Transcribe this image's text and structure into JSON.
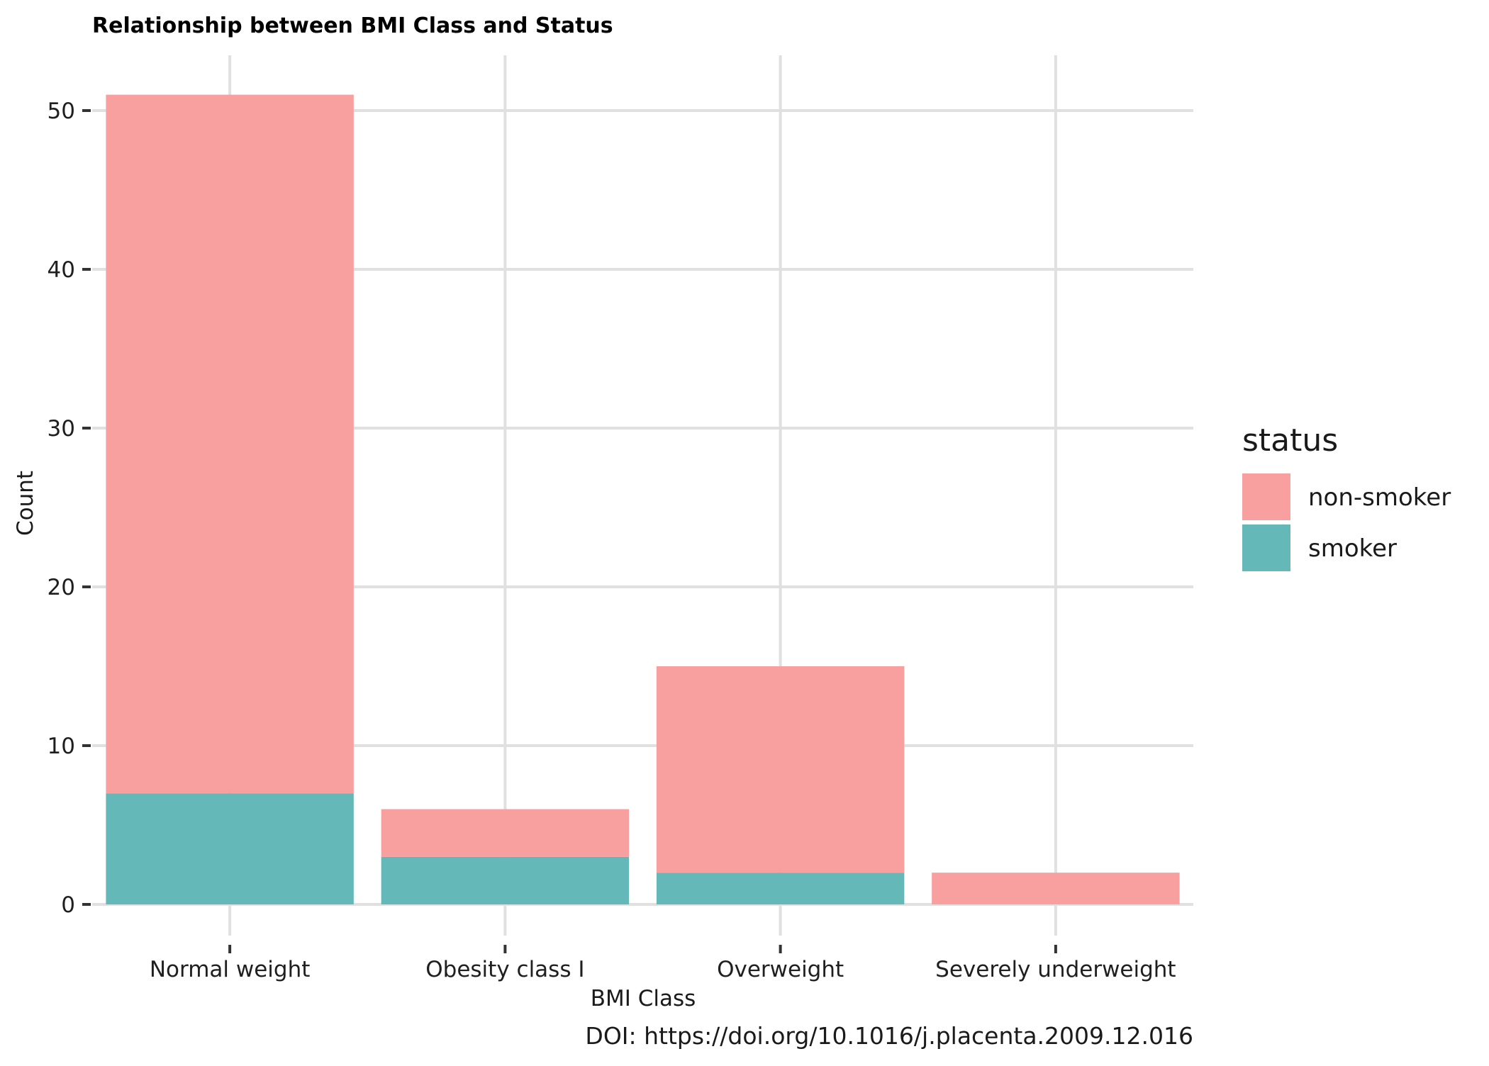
{
  "chart_data": {
    "type": "bar",
    "stacked": true,
    "title": "Relationship between BMI Class and Status",
    "xlabel": "BMI Class",
    "ylabel": "Count",
    "categories": [
      "Normal weight",
      "Obesity class I",
      "Overweight",
      "Severely underweight"
    ],
    "series": [
      {
        "name": "non-smoker",
        "values": [
          44,
          3,
          13,
          2
        ],
        "color": "#f8a09f"
      },
      {
        "name": "smoker",
        "values": [
          7,
          3,
          2,
          0
        ],
        "color": "#64b9b8"
      }
    ],
    "yticks": [
      0,
      10,
      20,
      30,
      40,
      50
    ],
    "ylim": [
      0,
      53.5
    ],
    "grid": true,
    "legend": {
      "title": "status",
      "position": "right"
    },
    "caption": "DOI: https://doi.org/10.1016/j.placenta.2009.12.016"
  }
}
